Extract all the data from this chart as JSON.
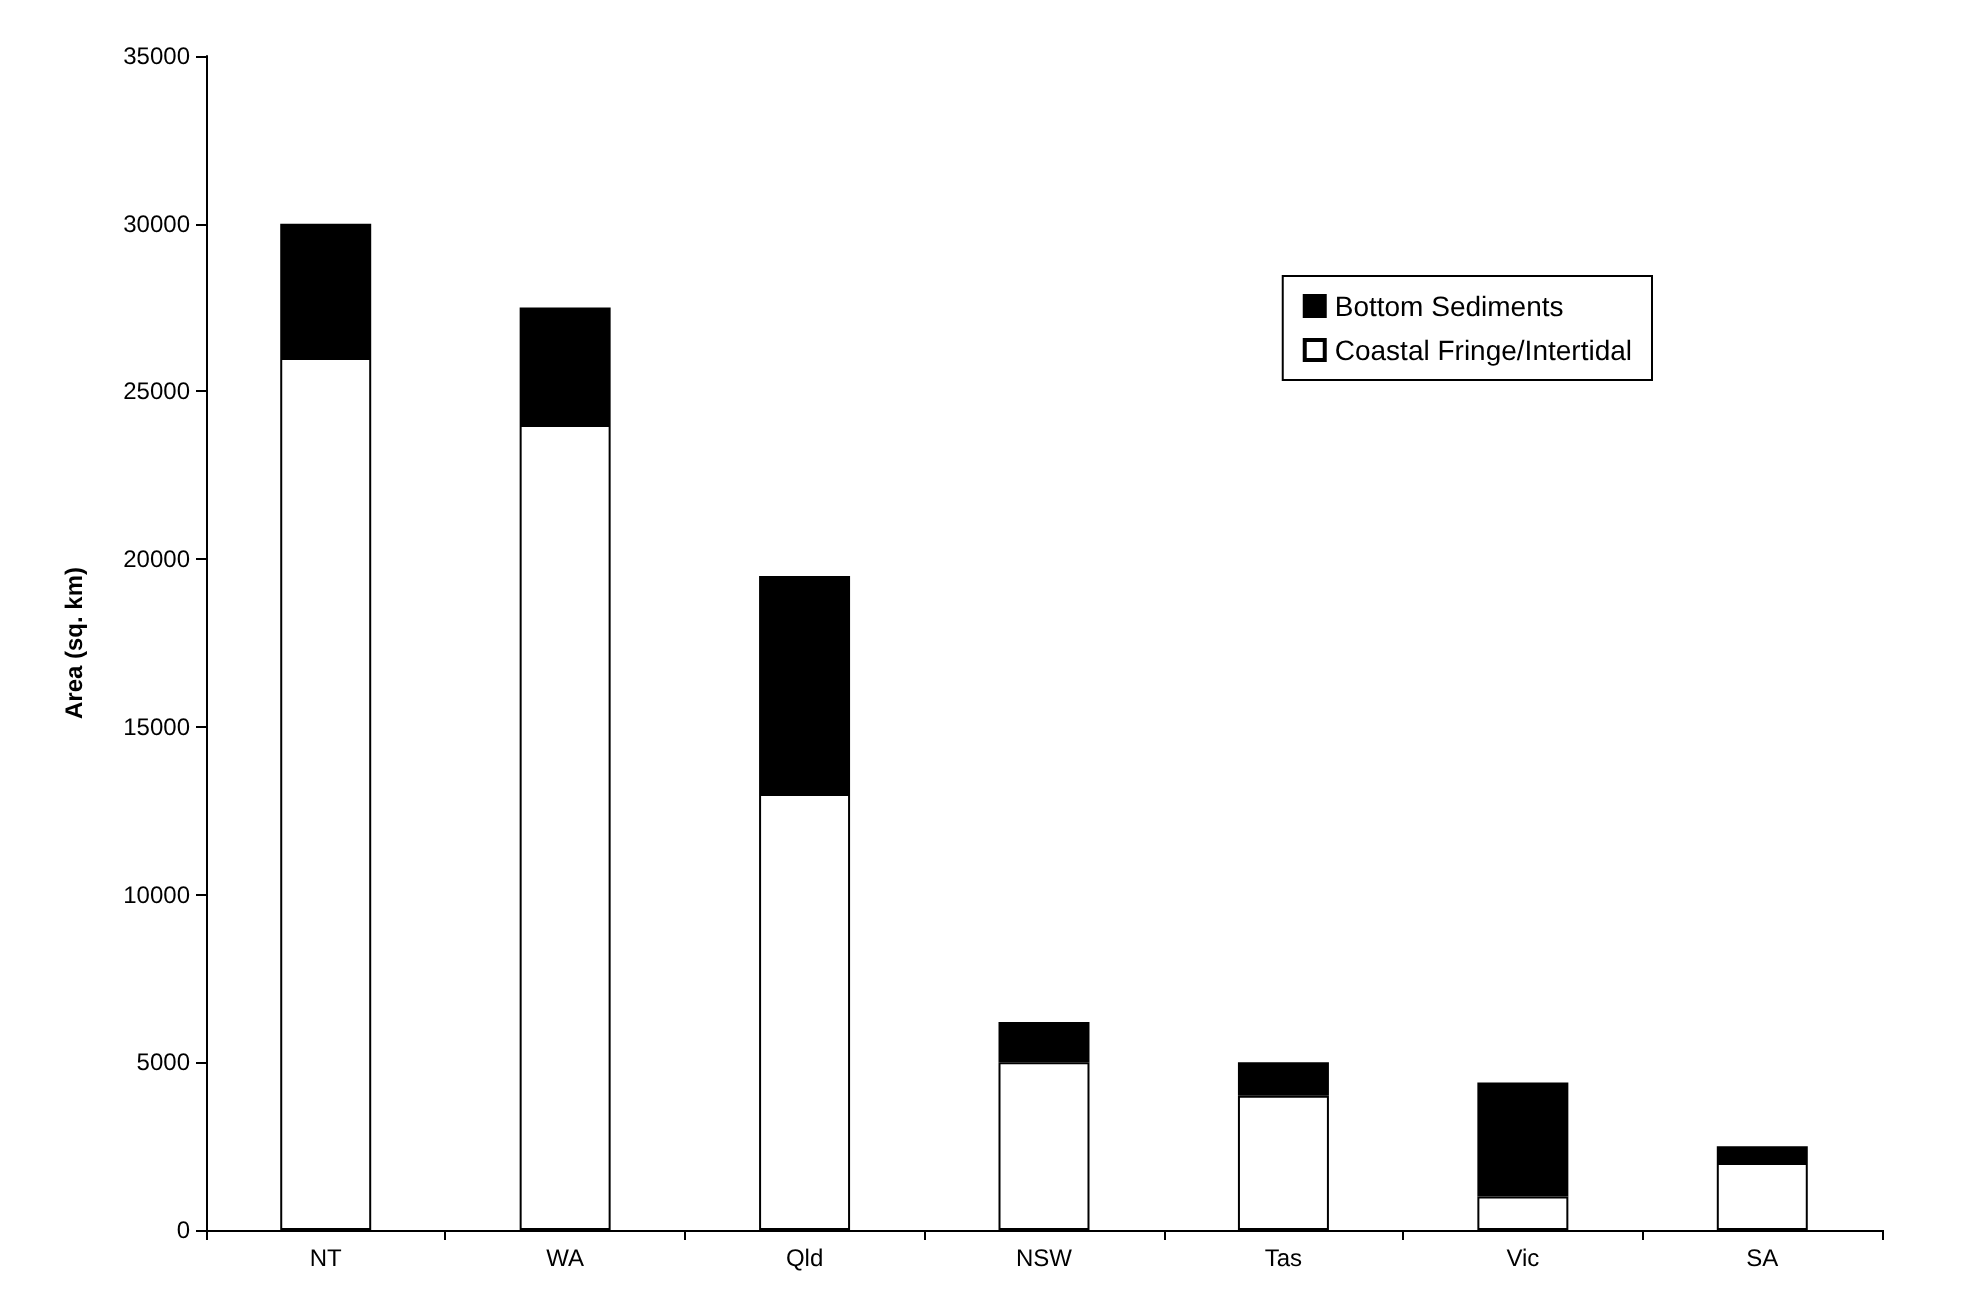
{
  "chart_data": {
    "type": "bar",
    "stacked": true,
    "ylabel": "Area (sq. km)",
    "categories": [
      "NT",
      "WA",
      "Qld",
      "NSW",
      "Tas",
      "Vic",
      "SA"
    ],
    "series": [
      {
        "name": "Coastal Fringe/Intertidal",
        "color": "#ffffff",
        "values": [
          26000,
          24000,
          13000,
          5000,
          4000,
          1000,
          2000
        ]
      },
      {
        "name": "Bottom Sediments",
        "color": "#000000",
        "values": [
          4000,
          3500,
          6500,
          1200,
          1000,
          3400,
          500
        ]
      }
    ],
    "ylim": [
      0,
      35000
    ],
    "yticks": [
      0,
      5000,
      10000,
      15000,
      20000,
      25000,
      30000,
      35000
    ],
    "grid": false,
    "legend": "top right"
  }
}
